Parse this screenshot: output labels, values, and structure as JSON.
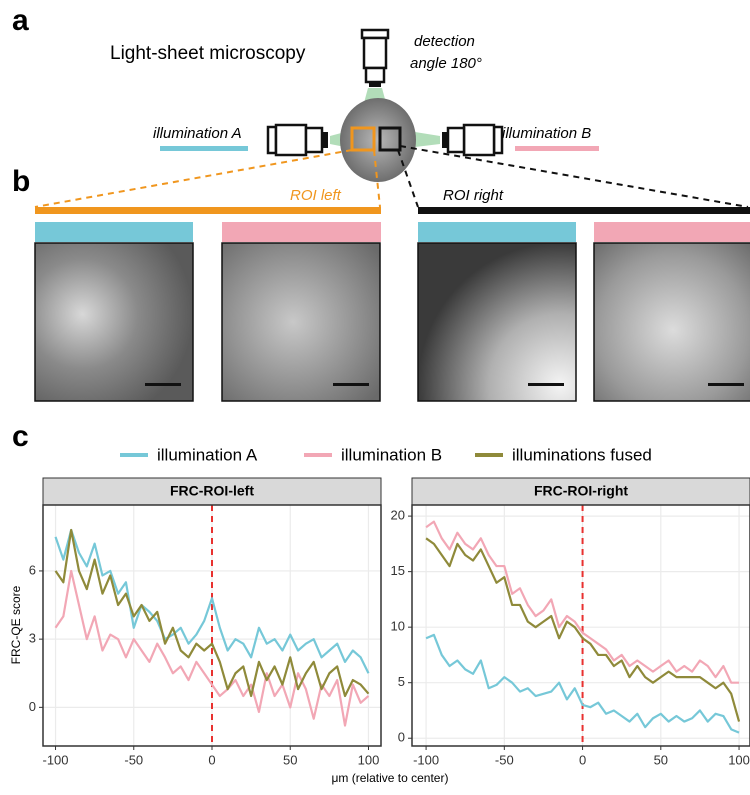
{
  "figure": {
    "panel_a": "a",
    "panel_b": "b",
    "panel_c": "c",
    "title": "Light-sheet microscopy",
    "detection": [
      "detection",
      "angle 180°"
    ],
    "illumination_a": "illumination A",
    "illumination_b": "illumination B",
    "roi_left": "ROI left",
    "roi_right": "ROI right",
    "xlabel": "μm (relative to center)",
    "ylabel": "FRC-QE score"
  },
  "chart_data": [
    {
      "type": "line",
      "title": "FRC-ROI-left",
      "xlim": [
        -108,
        108
      ],
      "ylim": [
        -1.7,
        8.9
      ],
      "xticks": [
        -100,
        -50,
        0,
        50,
        100
      ],
      "yticks": [
        0,
        3,
        6
      ],
      "grid": true,
      "vline": {
        "x": 0,
        "color": "#e8312f"
      },
      "x": [
        -100,
        -95,
        -90,
        -85,
        -80,
        -75,
        -70,
        -65,
        -60,
        -55,
        -50,
        -45,
        -40,
        -35,
        -30,
        -25,
        -20,
        -15,
        -10,
        -5,
        0,
        5,
        10,
        15,
        20,
        25,
        30,
        35,
        40,
        45,
        50,
        55,
        60,
        65,
        70,
        75,
        80,
        85,
        90,
        95,
        100
      ],
      "series": [
        {
          "name": "illumination A",
          "color": "#76c8d8",
          "values": [
            7.5,
            6.5,
            7.8,
            6.8,
            6.2,
            7.2,
            5.8,
            6.0,
            5.0,
            5.5,
            3.5,
            4.5,
            4.2,
            3.8,
            3.0,
            3.2,
            3.5,
            2.8,
            3.2,
            3.8,
            4.8,
            3.5,
            2.5,
            3.0,
            2.8,
            2.2,
            3.5,
            2.8,
            3.0,
            2.5,
            3.2,
            2.5,
            2.8,
            3.0,
            2.2,
            2.5,
            2.8,
            2.0,
            2.5,
            2.2,
            1.5
          ]
        },
        {
          "name": "illumination B",
          "color": "#f2a7b5",
          "values": [
            3.5,
            4.0,
            6.0,
            4.5,
            3.0,
            4.0,
            2.5,
            3.2,
            3.0,
            2.2,
            3.0,
            2.5,
            2.0,
            2.8,
            2.2,
            1.5,
            1.8,
            1.2,
            2.0,
            1.5,
            1.0,
            0.5,
            0.8,
            1.2,
            0.5,
            1.0,
            -0.2,
            1.5,
            0.5,
            1.0,
            0.0,
            1.5,
            0.8,
            -0.5,
            1.0,
            0.5,
            1.2,
            -0.8,
            1.0,
            0.2,
            0.5
          ]
        },
        {
          "name": "illuminations fused",
          "color": "#8f8a3a",
          "values": [
            6.0,
            5.5,
            7.8,
            6.0,
            5.2,
            6.5,
            5.0,
            5.8,
            4.5,
            5.0,
            4.0,
            4.5,
            3.8,
            4.2,
            2.8,
            3.5,
            2.5,
            2.2,
            2.8,
            2.5,
            2.8,
            2.0,
            0.8,
            1.5,
            1.8,
            0.5,
            2.0,
            1.2,
            1.8,
            1.0,
            2.2,
            0.8,
            1.5,
            2.0,
            0.8,
            1.5,
            1.8,
            0.5,
            1.2,
            1.0,
            0.6
          ]
        }
      ]
    },
    {
      "type": "line",
      "title": "FRC-ROI-right",
      "xlim": [
        -109,
        107
      ],
      "ylim": [
        -0.7,
        21
      ],
      "xticks": [
        -100,
        -50,
        0,
        50,
        100
      ],
      "yticks": [
        0,
        5,
        10,
        15,
        20
      ],
      "grid": true,
      "vline": {
        "x": 0,
        "color": "#e8312f"
      },
      "x": [
        -100,
        -95,
        -90,
        -85,
        -80,
        -75,
        -70,
        -65,
        -60,
        -55,
        -50,
        -45,
        -40,
        -35,
        -30,
        -25,
        -20,
        -15,
        -10,
        -5,
        0,
        5,
        10,
        15,
        20,
        25,
        30,
        35,
        40,
        45,
        50,
        55,
        60,
        65,
        70,
        75,
        80,
        85,
        90,
        95,
        100
      ],
      "series": [
        {
          "name": "illumination A",
          "color": "#76c8d8",
          "values": [
            9,
            9.3,
            7.5,
            6.5,
            7.0,
            6.2,
            5.8,
            7.0,
            4.5,
            4.8,
            5.5,
            5.0,
            4.2,
            4.5,
            3.8,
            4.0,
            4.2,
            5.0,
            3.5,
            4.5,
            3.0,
            2.8,
            3.2,
            2.2,
            2.5,
            2.0,
            1.5,
            2.2,
            1.0,
            1.8,
            2.2,
            1.5,
            2.0,
            1.5,
            1.8,
            2.5,
            1.5,
            2.2,
            2.0,
            0.8,
            0.5
          ]
        },
        {
          "name": "illumination B",
          "color": "#f2a7b5",
          "values": [
            19,
            19.5,
            18,
            17,
            18.5,
            17.5,
            17,
            18,
            16.5,
            15.5,
            15.5,
            13,
            13.5,
            12,
            11,
            11.5,
            12.5,
            10,
            11,
            10.5,
            9.5,
            9,
            8.5,
            8,
            7,
            7.5,
            6.5,
            7,
            6.5,
            6,
            6.5,
            7,
            6,
            6.5,
            6,
            7,
            6.5,
            5.5,
            6.5,
            5,
            5
          ]
        },
        {
          "name": "illuminations fused",
          "color": "#8f8a3a",
          "values": [
            18,
            17.5,
            16.5,
            15.5,
            17.5,
            16.5,
            16,
            17,
            15.5,
            14,
            14.5,
            12,
            12,
            10.5,
            10,
            10.5,
            11,
            9,
            10.5,
            10,
            9,
            8.5,
            7.5,
            7.5,
            6.5,
            7,
            5.5,
            6.5,
            5.5,
            5,
            5.5,
            6,
            5.5,
            5.5,
            5.5,
            5.5,
            5,
            4.5,
            5,
            4,
            1.5
          ]
        }
      ]
    }
  ]
}
